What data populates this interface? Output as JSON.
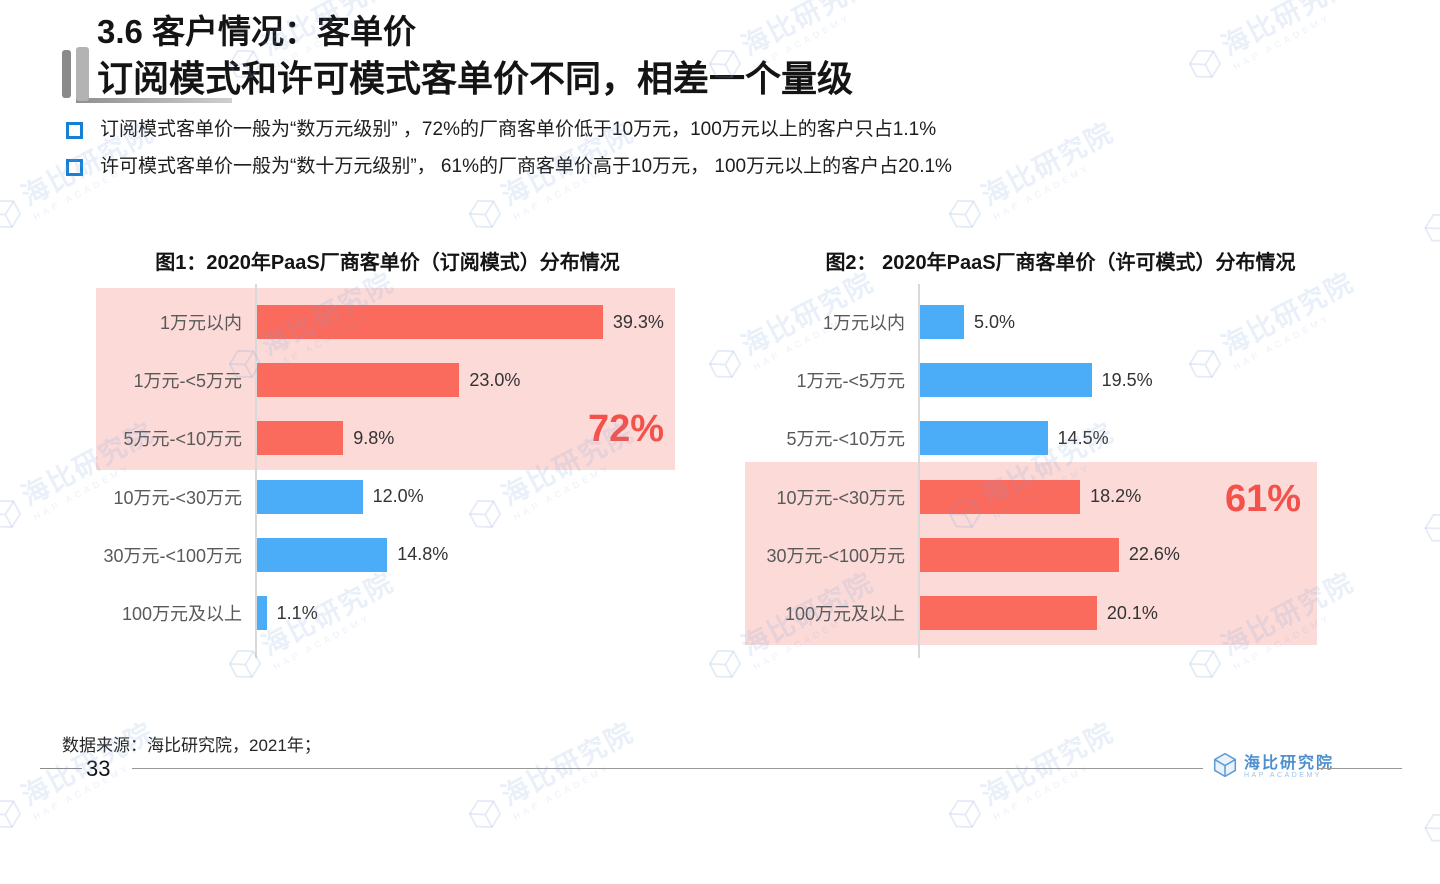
{
  "page": {
    "title": "3.6 客户情况：客单价",
    "subtitle": "订阅模式和许可模式客单价不同，相差一个量级",
    "bullets": [
      "订阅模式客单价一般为“数万元级别” ，72%的厂商客单价低于10万元，100万元以上的客户只占1.1%",
      "许可模式客单价一般为“数十万元级别”， 61%的厂商客单价高于10万元， 100万元以上的客户占20.1%"
    ]
  },
  "chart_data": [
    {
      "type": "bar",
      "orientation": "horizontal",
      "title": "图1：2020年PaaS厂商客单价（订阅模式）分布情况",
      "categories": [
        "1万元以内",
        "1万元-<5万元",
        "5万元-<10万元",
        "10万元-<30万元",
        "30万元-<100万元",
        "100万元及以上"
      ],
      "values": [
        39.3,
        23.0,
        9.8,
        12.0,
        14.8,
        1.1
      ],
      "value_labels": [
        "39.3%",
        "23.0%",
        "9.8%",
        "12.0%",
        "14.8%",
        "1.1%"
      ],
      "xlim": [
        0,
        45
      ],
      "grid": false,
      "legend": "none",
      "highlight": {
        "rows": [
          0,
          1,
          2
        ],
        "label": "72%"
      }
    },
    {
      "type": "bar",
      "orientation": "horizontal",
      "title": "图2： 2020年PaaS厂商客单价（许可模式）分布情况",
      "categories": [
        "1万元以内",
        "1万元-<5万元",
        "5万元-<10万元",
        "10万元-<30万元",
        "30万元-<100万元",
        "100万元及以上"
      ],
      "values": [
        5.0,
        19.5,
        14.5,
        18.2,
        22.6,
        20.1
      ],
      "value_labels": [
        "5.0%",
        "19.5%",
        "14.5%",
        "18.2%",
        "22.6%",
        "20.1%"
      ],
      "xlim": [
        0,
        45
      ],
      "grid": false,
      "legend": "none",
      "highlight": {
        "rows": [
          3,
          4,
          5
        ],
        "label": "61%"
      }
    }
  ],
  "footer": {
    "source": "数据来源：海比研究院，2021年；",
    "page_number": "33",
    "logo_text": "海比研究院",
    "logo_subtext": "HAP ACADEMY"
  },
  "watermark": {
    "text": "海比研究院",
    "subtext": "HAP ACADEMY"
  },
  "colors": {
    "bar_red": "#FB6B5D",
    "bar_blue": "#4BADF7",
    "highlight_bg": "#FBDAD8",
    "highlight_label": "#F4514B",
    "bullet_blue": "#1780D5",
    "logo_blue": "#4E8FD0"
  }
}
